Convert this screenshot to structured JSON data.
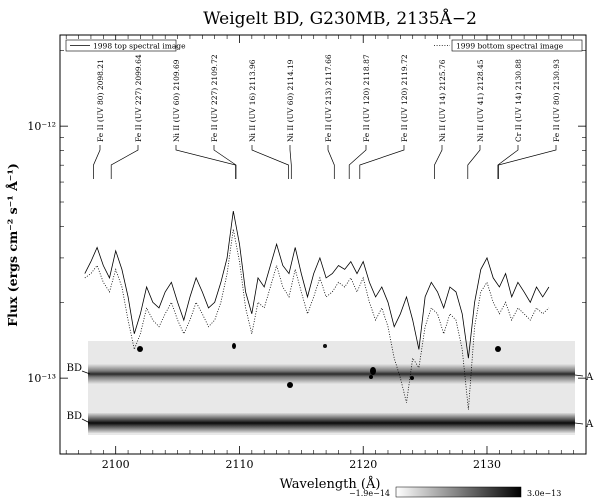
{
  "chart_data": {
    "type": "line",
    "title": "Weigelt BD, G230MB, 2135Å−2",
    "xlabel": "Wavelength (Å)",
    "ylabel": "Flux (ergs cm⁻² s⁻¹ Å⁻¹)",
    "xlim": [
      2095.5,
      2138
    ],
    "ylim_log": [
      5e-14,
      2.3e-12
    ],
    "y_scale": "log",
    "x_ticks": [
      2100,
      2110,
      2120,
      2130
    ],
    "y_ticks": [
      {
        "value": 1e-12,
        "label": "10⁻¹²"
      },
      {
        "value": 1e-13,
        "label": "10⁻¹³"
      }
    ],
    "legend": [
      {
        "label": "1998 top spectral image",
        "style": "solid",
        "position": "top-left"
      },
      {
        "label": "1999 bottom spectral image",
        "style": "dotted",
        "position": "top-right"
      }
    ],
    "line_ids": [
      {
        "label": "Fe II (UV 80) 2098.21",
        "wl": 2098.21
      },
      {
        "label": "Fe II (UV 227) 2099.64",
        "wl": 2099.64
      },
      {
        "label": "Ni II (UV 60) 2109.69",
        "wl": 2109.69
      },
      {
        "label": "Fe II (UV 227) 2109.72",
        "wl": 2109.72
      },
      {
        "label": "Ni II (UV 16) 2113.96",
        "wl": 2113.96
      },
      {
        "label": "Ni II (UV 60) 2114.19",
        "wl": 2114.19
      },
      {
        "label": "Fe II (UV 213) 2117.66",
        "wl": 2117.66
      },
      {
        "label": "Fe II (UV 120) 2118.87",
        "wl": 2118.87
      },
      {
        "label": "Fe II (UV 120) 2119.72",
        "wl": 2119.72
      },
      {
        "label": "Ni II (UV 14) 2125.76",
        "wl": 2125.76
      },
      {
        "label": "Ni II (UV 41) 2128.45",
        "wl": 2128.45
      },
      {
        "label": "Cr II (UV 14) 2130.88",
        "wl": 2130.88
      },
      {
        "label": "Fe II (UV 80) 2130.93",
        "wl": 2130.93
      }
    ],
    "series": [
      {
        "name": "1998 top spectral image",
        "style": "solid",
        "x": [
          2097.5,
          2098,
          2098.5,
          2099,
          2099.5,
          2100,
          2100.5,
          2101,
          2101.5,
          2102,
          2102.5,
          2103,
          2103.5,
          2104,
          2104.5,
          2105,
          2105.5,
          2106,
          2106.5,
          2107,
          2107.5,
          2108,
          2108.5,
          2109,
          2109.5,
          2110,
          2110.5,
          2111,
          2111.5,
          2112,
          2112.5,
          2113,
          2113.5,
          2114,
          2114.5,
          2115,
          2115.5,
          2116,
          2116.5,
          2117,
          2117.5,
          2118,
          2118.5,
          2119,
          2119.5,
          2120,
          2120.5,
          2121,
          2121.5,
          2122,
          2122.5,
          2123,
          2123.5,
          2124,
          2124.5,
          2125,
          2125.5,
          2126,
          2126.5,
          2127,
          2127.5,
          2128,
          2128.5,
          2129,
          2129.5,
          2130,
          2130.5,
          2131,
          2131.5,
          2132,
          2132.5,
          2133,
          2133.5,
          2134,
          2134.5,
          2135
        ],
        "y": [
          2.6e-13,
          2.9e-13,
          3.3e-13,
          2.8e-13,
          2.5e-13,
          3.2e-13,
          2.7e-13,
          2.1e-13,
          1.5e-13,
          1.8e-13,
          2.3e-13,
          2e-13,
          1.9e-13,
          2.2e-13,
          2.4e-13,
          2e-13,
          1.7e-13,
          2.1e-13,
          2.5e-13,
          2.2e-13,
          1.9e-13,
          2e-13,
          2.4e-13,
          3e-13,
          4.6e-13,
          3.4e-13,
          2.2e-13,
          1.8e-13,
          2.5e-13,
          2.3e-13,
          2.8e-13,
          3.4e-13,
          2.8e-13,
          2.6e-13,
          3.3e-13,
          2.6e-13,
          2.1e-13,
          2.6e-13,
          3e-13,
          2.5e-13,
          2.6e-13,
          2.8e-13,
          2.7e-13,
          2.9e-13,
          2.6e-13,
          2.9e-13,
          2.4e-13,
          2.1e-13,
          2.3e-13,
          2e-13,
          1.6e-13,
          1.8e-13,
          2.1e-13,
          1.7e-13,
          1.3e-13,
          2.1e-13,
          2.4e-13,
          2.2e-13,
          1.9e-13,
          2.3e-13,
          2.2e-13,
          1.8e-13,
          1.2e-13,
          2e-13,
          2.7e-13,
          3e-13,
          2.5e-13,
          2.3e-13,
          2.6e-13,
          2.1e-13,
          2.4e-13,
          2.2e-13,
          2e-13,
          2.3e-13,
          2.1e-13,
          2.3e-13
        ]
      },
      {
        "name": "1999 bottom spectral image",
        "style": "dotted",
        "x": [
          2097.5,
          2098,
          2098.5,
          2099,
          2099.5,
          2100,
          2100.5,
          2101,
          2101.5,
          2102,
          2102.5,
          2103,
          2103.5,
          2104,
          2104.5,
          2105,
          2105.5,
          2106,
          2106.5,
          2107,
          2107.5,
          2108,
          2108.5,
          2109,
          2109.5,
          2110,
          2110.5,
          2111,
          2111.5,
          2112,
          2112.5,
          2113,
          2113.5,
          2114,
          2114.5,
          2115,
          2115.5,
          2116,
          2116.5,
          2117,
          2117.5,
          2118,
          2118.5,
          2119,
          2119.5,
          2120,
          2120.5,
          2121,
          2121.5,
          2122,
          2122.5,
          2123,
          2123.5,
          2124,
          2124.5,
          2125,
          2125.5,
          2126,
          2126.5,
          2127,
          2127.5,
          2128,
          2128.5,
          2129,
          2129.5,
          2130,
          2130.5,
          2131,
          2131.5,
          2132,
          2132.5,
          2133,
          2133.5,
          2134,
          2134.5,
          2135
        ],
        "y": [
          2.5e-13,
          2.6e-13,
          2.8e-13,
          2.4e-13,
          2.2e-13,
          2.7e-13,
          2.3e-13,
          1.7e-13,
          1.3e-13,
          1.5e-13,
          1.9e-13,
          1.7e-13,
          1.6e-13,
          1.8e-13,
          2e-13,
          1.7e-13,
          1.5e-13,
          1.7e-13,
          2e-13,
          1.8e-13,
          1.6e-13,
          1.7e-13,
          2e-13,
          2.6e-13,
          3.9e-13,
          2.9e-13,
          1.9e-13,
          1.5e-13,
          2e-13,
          1.9e-13,
          2.3e-13,
          2.8e-13,
          2.3e-13,
          2.1e-13,
          2.7e-13,
          2.2e-13,
          1.8e-13,
          2.1e-13,
          2.5e-13,
          2.1e-13,
          2.2e-13,
          2.4e-13,
          2.3e-13,
          2.5e-13,
          2.2e-13,
          2.5e-13,
          2e-13,
          1.7e-13,
          1.9e-13,
          1.6e-13,
          1.2e-13,
          1e-13,
          8e-14,
          1.2e-13,
          1.1e-13,
          1.6e-13,
          1.9e-13,
          1.8e-13,
          1.5e-13,
          1.8e-13,
          1.7e-13,
          1.3e-13,
          7.5e-14,
          1.6e-13,
          2.2e-13,
          2.4e-13,
          2e-13,
          1.8e-13,
          2e-13,
          1.7e-13,
          1.9e-13,
          1.8e-13,
          1.7e-13,
          1.9e-13,
          1.8e-13,
          1.9e-13
        ]
      }
    ],
    "spectral_image": {
      "left_labels": [
        "BD",
        "BD"
      ],
      "right_labels": [
        "A",
        "A"
      ],
      "colorbar": {
        "min_label": "−1.9e−14",
        "max_label": "3.0e−13"
      }
    }
  }
}
